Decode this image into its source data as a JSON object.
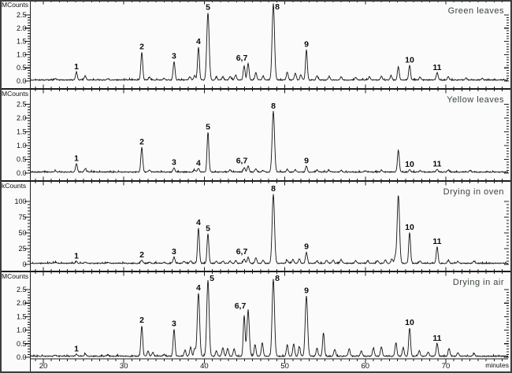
{
  "figure": {
    "background": "#fbfbfb",
    "border_color": "#3d3d3d",
    "axis_color": "#1c1c1c",
    "trace_color": "#141414",
    "tick_label_color": "#111111",
    "peak_label_color": "#0a0a0a",
    "title_color": "#3a443a"
  },
  "chart_data": {
    "type": "line",
    "xlabel": "minutes",
    "x_axis": {
      "ticks": [
        20,
        30,
        40,
        50,
        60,
        70
      ],
      "minor_step": 1,
      "range": [
        18.4,
        77.7
      ]
    },
    "panels": [
      {
        "title": "Green leaves",
        "ylabel": "MCounts",
        "y_axis": {
          "ticks": [
            0,
            0.5,
            1,
            1.5,
            2,
            2.5
          ],
          "labels": [
            "0.0",
            "0.5",
            "1.0",
            "1.5",
            "2.0",
            "2.5"
          ],
          "minor_step": 0.1
        },
        "peaks": [
          [
            21.5,
            0.05
          ],
          [
            24.11,
            0.3,
            "1"
          ],
          [
            25.2,
            0.15
          ],
          [
            28,
            0.05
          ],
          [
            32.23,
            1.05,
            "2"
          ],
          [
            33.2,
            0.1
          ],
          [
            35,
            0.06
          ],
          [
            36.24,
            0.7,
            "3"
          ],
          [
            38.2,
            0.12
          ],
          [
            38.8,
            0.16
          ],
          [
            39.27,
            1.25,
            "4"
          ],
          [
            40.45,
            2.55,
            "5"
          ],
          [
            41.5,
            0.1
          ],
          [
            42.3,
            0.12
          ],
          [
            43.2,
            0.14
          ],
          [
            43.9,
            0.18
          ],
          [
            44.95,
            0.55
          ],
          [
            45.44,
            0.62,
            "6,7",
            -8
          ],
          [
            46.4,
            0.28
          ],
          [
            47.3,
            0.14
          ],
          [
            48.57,
            2.88,
            "8"
          ],
          [
            50.3,
            0.3
          ],
          [
            51.3,
            0.26
          ],
          [
            52.0,
            0.2
          ],
          [
            52.68,
            1.15,
            "9"
          ],
          [
            54.0,
            0.16
          ],
          [
            55.5,
            0.14
          ],
          [
            57.0,
            0.12
          ],
          [
            58.8,
            0.1
          ],
          [
            60.5,
            0.12
          ],
          [
            62.0,
            0.14
          ],
          [
            63.2,
            0.16
          ],
          [
            64.1,
            0.5
          ],
          [
            65.5,
            0.55,
            "10"
          ],
          [
            66.8,
            0.1
          ],
          [
            68.92,
            0.27,
            "11"
          ],
          [
            70.3,
            0.12
          ],
          [
            72.5,
            0.08
          ],
          [
            74.5,
            0.06
          ]
        ]
      },
      {
        "title": "Yellow leaves",
        "ylabel": "MCounts",
        "y_axis": {
          "ticks": [
            0,
            0.5,
            1,
            1.5,
            2,
            2.5
          ],
          "labels": [
            "0.0",
            "0.5",
            "1.0",
            "1.5",
            "2.0",
            "2.5"
          ],
          "minor_step": 0.1
        },
        "peaks": [
          [
            21.5,
            0.04
          ],
          [
            24.11,
            0.3,
            "1"
          ],
          [
            25.2,
            0.12
          ],
          [
            32.23,
            0.9,
            "2"
          ],
          [
            33.2,
            0.07
          ],
          [
            36.24,
            0.16,
            "3"
          ],
          [
            38.8,
            0.06
          ],
          [
            39.27,
            0.13,
            "4"
          ],
          [
            40.45,
            1.45,
            "5"
          ],
          [
            43.2,
            0.08
          ],
          [
            44.95,
            0.16
          ],
          [
            45.44,
            0.22,
            "6,7",
            -8
          ],
          [
            46.4,
            0.12
          ],
          [
            47.3,
            0.06
          ],
          [
            48.57,
            2.2,
            "8"
          ],
          [
            50.3,
            0.1
          ],
          [
            51.3,
            0.08
          ],
          [
            52.68,
            0.22,
            "9"
          ],
          [
            54,
            0.08
          ],
          [
            55.5,
            0.06
          ],
          [
            57,
            0.06
          ],
          [
            60,
            0.05
          ],
          [
            62,
            0.06
          ],
          [
            64.1,
            0.8
          ],
          [
            65.5,
            0.08,
            "10"
          ],
          [
            66.8,
            0.05
          ],
          [
            68.92,
            0.1,
            "11"
          ],
          [
            70.3,
            0.07
          ],
          [
            73,
            0.05
          ]
        ]
      },
      {
        "title": "Drying in oven",
        "ylabel": "kCounts",
        "y_axis": {
          "ticks": [
            0,
            25,
            50,
            75,
            100
          ],
          "labels": [
            "0",
            "25",
            "50",
            "75",
            "100"
          ],
          "minor_step": 5
        },
        "peaks": [
          [
            21.5,
            1.5
          ],
          [
            24.11,
            3,
            "1"
          ],
          [
            25.2,
            2
          ],
          [
            28,
            1.5
          ],
          [
            32.23,
            5,
            "2"
          ],
          [
            33.2,
            2
          ],
          [
            35,
            1.5
          ],
          [
            36.24,
            10,
            "3"
          ],
          [
            37.5,
            3
          ],
          [
            38.3,
            4
          ],
          [
            39.27,
            56,
            "4"
          ],
          [
            40.45,
            47,
            "5"
          ],
          [
            41.5,
            3
          ],
          [
            42.3,
            3.5
          ],
          [
            43.2,
            4
          ],
          [
            43.9,
            4
          ],
          [
            44.95,
            7
          ],
          [
            45.44,
            10,
            "6,7",
            -8
          ],
          [
            46.4,
            9
          ],
          [
            47.3,
            5
          ],
          [
            48.57,
            110,
            "8"
          ],
          [
            50.3,
            5
          ],
          [
            51,
            6
          ],
          [
            51.8,
            7
          ],
          [
            52.68,
            18,
            "9"
          ],
          [
            54,
            4
          ],
          [
            55.2,
            5
          ],
          [
            56,
            5
          ],
          [
            57,
            6
          ],
          [
            58.8,
            4
          ],
          [
            60.3,
            4
          ],
          [
            61.5,
            4.5
          ],
          [
            62.5,
            5
          ],
          [
            63.3,
            7
          ],
          [
            63.7,
            9
          ],
          [
            64.1,
            108
          ],
          [
            65.5,
            49,
            "10"
          ],
          [
            66.8,
            4
          ],
          [
            68.92,
            26,
            "11"
          ],
          [
            70.3,
            4.5
          ],
          [
            71.5,
            3
          ],
          [
            73.5,
            3
          ]
        ]
      },
      {
        "title": "Drying in air",
        "ylabel": "MCounts",
        "y_axis": {
          "ticks": [
            0,
            0.5,
            1,
            1.5,
            2,
            2.5
          ],
          "labels": [
            "0.0",
            "0.5",
            "1.0",
            "1.5",
            "2.0",
            "2.5"
          ],
          "minor_step": 0.1
        },
        "peaks": [
          [
            21.5,
            0.04
          ],
          [
            24.11,
            0.07,
            "1"
          ],
          [
            25.2,
            0.08
          ],
          [
            28,
            0.05
          ],
          [
            32.23,
            1.13,
            "2"
          ],
          [
            33.0,
            0.18
          ],
          [
            33.6,
            0.14
          ],
          [
            35,
            0.06
          ],
          [
            36.24,
            1.0,
            "3"
          ],
          [
            37.6,
            0.22
          ],
          [
            38.3,
            0.34
          ],
          [
            38.8,
            0.28
          ],
          [
            39.27,
            2.32,
            "4"
          ],
          [
            40.45,
            2.8,
            "5"
          ],
          [
            41.5,
            0.2
          ],
          [
            42.3,
            0.32
          ],
          [
            42.9,
            0.3
          ],
          [
            43.7,
            0.28
          ],
          [
            44.95,
            1.5
          ],
          [
            45.44,
            1.66,
            "6,7",
            -10
          ],
          [
            46.3,
            0.42
          ],
          [
            47.2,
            0.5
          ],
          [
            48.57,
            2.85,
            "8"
          ],
          [
            50.3,
            0.42
          ],
          [
            51.1,
            0.45
          ],
          [
            51.8,
            0.35
          ],
          [
            52.68,
            2.22,
            "9"
          ],
          [
            54.0,
            0.3
          ],
          [
            54.8,
            0.85
          ],
          [
            56.2,
            0.25
          ],
          [
            58,
            0.28
          ],
          [
            59.5,
            0.2
          ],
          [
            61,
            0.3
          ],
          [
            62,
            0.35
          ],
          [
            63.8,
            0.5
          ],
          [
            64.7,
            0.32
          ],
          [
            65.5,
            1.05,
            "10"
          ],
          [
            66.7,
            0.2
          ],
          [
            67.8,
            0.15
          ],
          [
            68.92,
            0.47,
            "11"
          ],
          [
            70.4,
            0.28
          ],
          [
            71.5,
            0.12
          ],
          [
            73.5,
            0.1
          ]
        ]
      }
    ]
  }
}
